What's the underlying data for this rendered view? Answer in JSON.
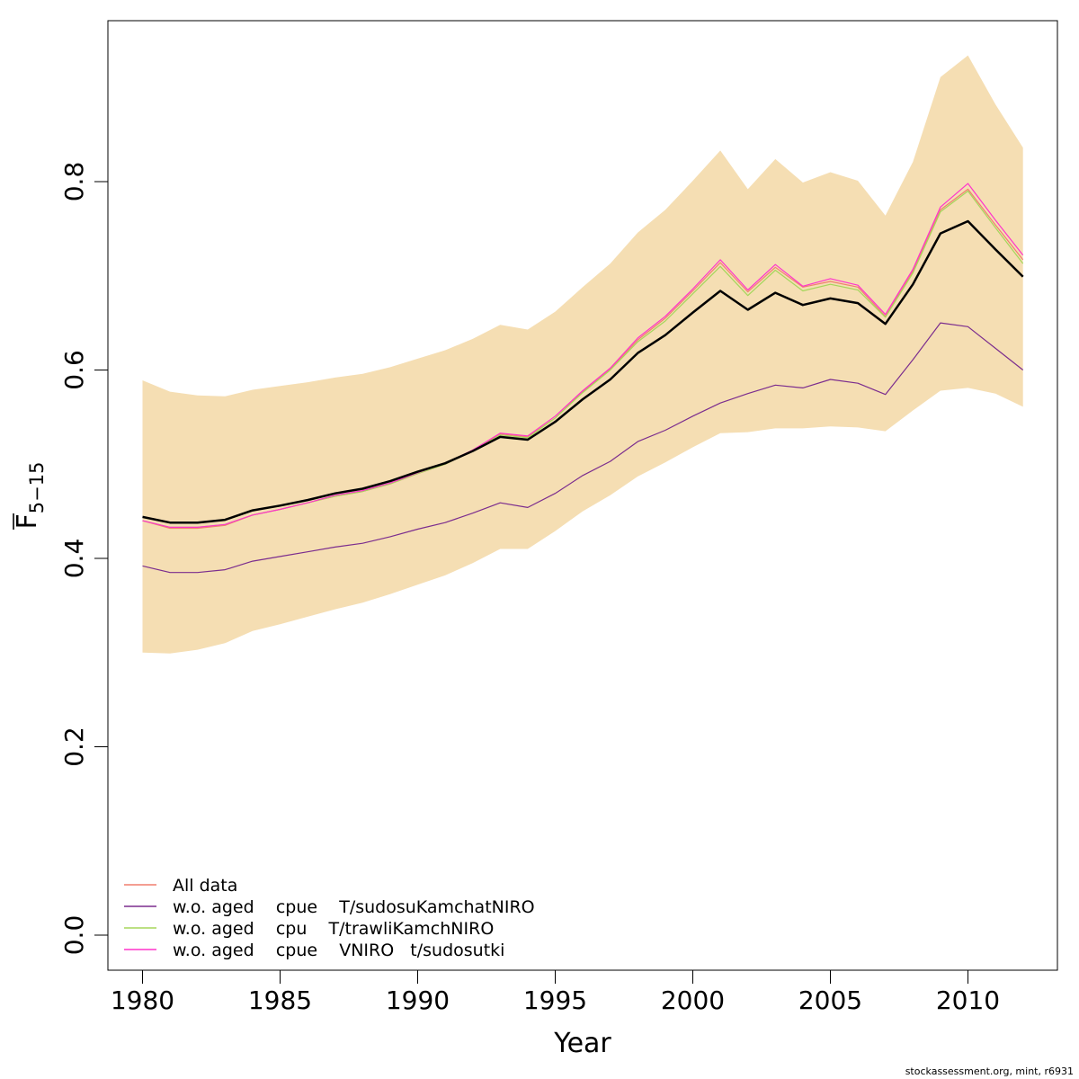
{
  "chart_data": {
    "type": "line",
    "xlabel": "Year",
    "ylabel_main": "F",
    "ylabel_sub": "5−15",
    "xlim": [
      1978.8,
      1980.0
    ],
    "ylim": [
      -0.04,
      0.97
    ],
    "xticks": [
      1980,
      1985,
      1990,
      1995,
      2000,
      2005,
      2010
    ],
    "yticks": [
      0.0,
      0.2,
      0.4,
      0.6,
      0.8
    ],
    "ytick_labels": [
      "0.0",
      "0.2",
      "0.4",
      "0.6",
      "0.8"
    ],
    "x": [
      1980,
      1981,
      1982,
      1983,
      1984,
      1985,
      1986,
      1987,
      1988,
      1989,
      1990,
      1991,
      1992,
      1993,
      1994,
      1995,
      1996,
      1997,
      1998,
      1999,
      2000,
      2001,
      2002,
      2003,
      2004,
      2005,
      2006,
      2007,
      2008,
      2009,
      2010,
      2011,
      2012
    ],
    "band": {
      "color": "#f5deb3",
      "upper": [
        0.589,
        0.577,
        0.573,
        0.572,
        0.579,
        0.583,
        0.587,
        0.592,
        0.596,
        0.603,
        0.612,
        0.621,
        0.633,
        0.648,
        0.643,
        0.662,
        0.688,
        0.713,
        0.746,
        0.77,
        0.801,
        0.833,
        0.792,
        0.824,
        0.799,
        0.81,
        0.801,
        0.764,
        0.821,
        0.911,
        0.934,
        0.882,
        0.836
      ],
      "lower": [
        0.3,
        0.299,
        0.303,
        0.31,
        0.323,
        0.33,
        0.338,
        0.346,
        0.353,
        0.362,
        0.372,
        0.382,
        0.395,
        0.41,
        0.41,
        0.429,
        0.45,
        0.467,
        0.487,
        0.502,
        0.518,
        0.533,
        0.534,
        0.538,
        0.538,
        0.54,
        0.539,
        0.535,
        0.557,
        0.578,
        0.581,
        0.575,
        0.561
      ]
    },
    "series": [
      {
        "values": [
          0.444,
          0.438,
          0.438,
          0.441,
          0.451,
          0.456,
          0.462,
          0.469,
          0.474,
          0.482,
          0.492,
          0.501,
          0.514,
          0.529,
          0.526,
          0.545,
          0.569,
          0.59,
          0.618,
          0.637,
          0.661,
          0.684,
          0.664,
          0.682,
          0.669,
          0.676,
          0.671,
          0.649,
          0.691,
          0.745,
          0.758,
          0.728,
          0.699
        ],
        "color": "#000000",
        "width": 2.5
      },
      {
        "name": "All data",
        "values": [
          0.44,
          0.432,
          0.432,
          0.435,
          0.446,
          0.452,
          0.459,
          0.466,
          0.471,
          0.479,
          0.49,
          0.5,
          0.514,
          0.532,
          0.529,
          0.549,
          0.577,
          0.601,
          0.632,
          0.655,
          0.684,
          0.714,
          0.683,
          0.709,
          0.688,
          0.694,
          0.688,
          0.657,
          0.705,
          0.77,
          0.792,
          0.754,
          0.717
        ],
        "color": "#f07f6f",
        "width": 1.2
      },
      {
        "name": "w.o. aged    cpue    T/sudosuKamchatNIRO",
        "values": [
          0.392,
          0.385,
          0.385,
          0.388,
          0.397,
          0.402,
          0.407,
          0.412,
          0.416,
          0.423,
          0.431,
          0.438,
          0.448,
          0.459,
          0.454,
          0.469,
          0.488,
          0.503,
          0.524,
          0.536,
          0.551,
          0.565,
          0.575,
          0.584,
          0.581,
          0.59,
          0.586,
          0.574,
          0.611,
          0.65,
          0.646,
          0.623,
          0.6
        ],
        "color": "#7b2d8e",
        "width": 1.2
      },
      {
        "name": "w.o. aged    cpu    T/trawliKamchNIRO",
        "values": [
          0.44,
          0.433,
          0.433,
          0.436,
          0.446,
          0.452,
          0.459,
          0.466,
          0.471,
          0.479,
          0.49,
          0.5,
          0.514,
          0.531,
          0.528,
          0.549,
          0.576,
          0.6,
          0.63,
          0.652,
          0.681,
          0.71,
          0.679,
          0.706,
          0.684,
          0.691,
          0.685,
          0.656,
          0.703,
          0.768,
          0.79,
          0.751,
          0.713
        ],
        "color": "#a5d65c",
        "width": 1.2
      },
      {
        "name": "w.o. aged    cpue    VNIRO   t/sudosutki",
        "values": [
          0.44,
          0.433,
          0.433,
          0.436,
          0.446,
          0.452,
          0.459,
          0.467,
          0.472,
          0.48,
          0.491,
          0.501,
          0.515,
          0.533,
          0.53,
          0.551,
          0.578,
          0.602,
          0.634,
          0.657,
          0.686,
          0.717,
          0.685,
          0.712,
          0.689,
          0.697,
          0.69,
          0.659,
          0.707,
          0.773,
          0.798,
          0.759,
          0.722
        ],
        "color": "#ff33cc",
        "width": 1.2
      }
    ],
    "legend_position": "bottom-left",
    "grid": false
  },
  "footer": "stockassessment.org, mint, r6931"
}
